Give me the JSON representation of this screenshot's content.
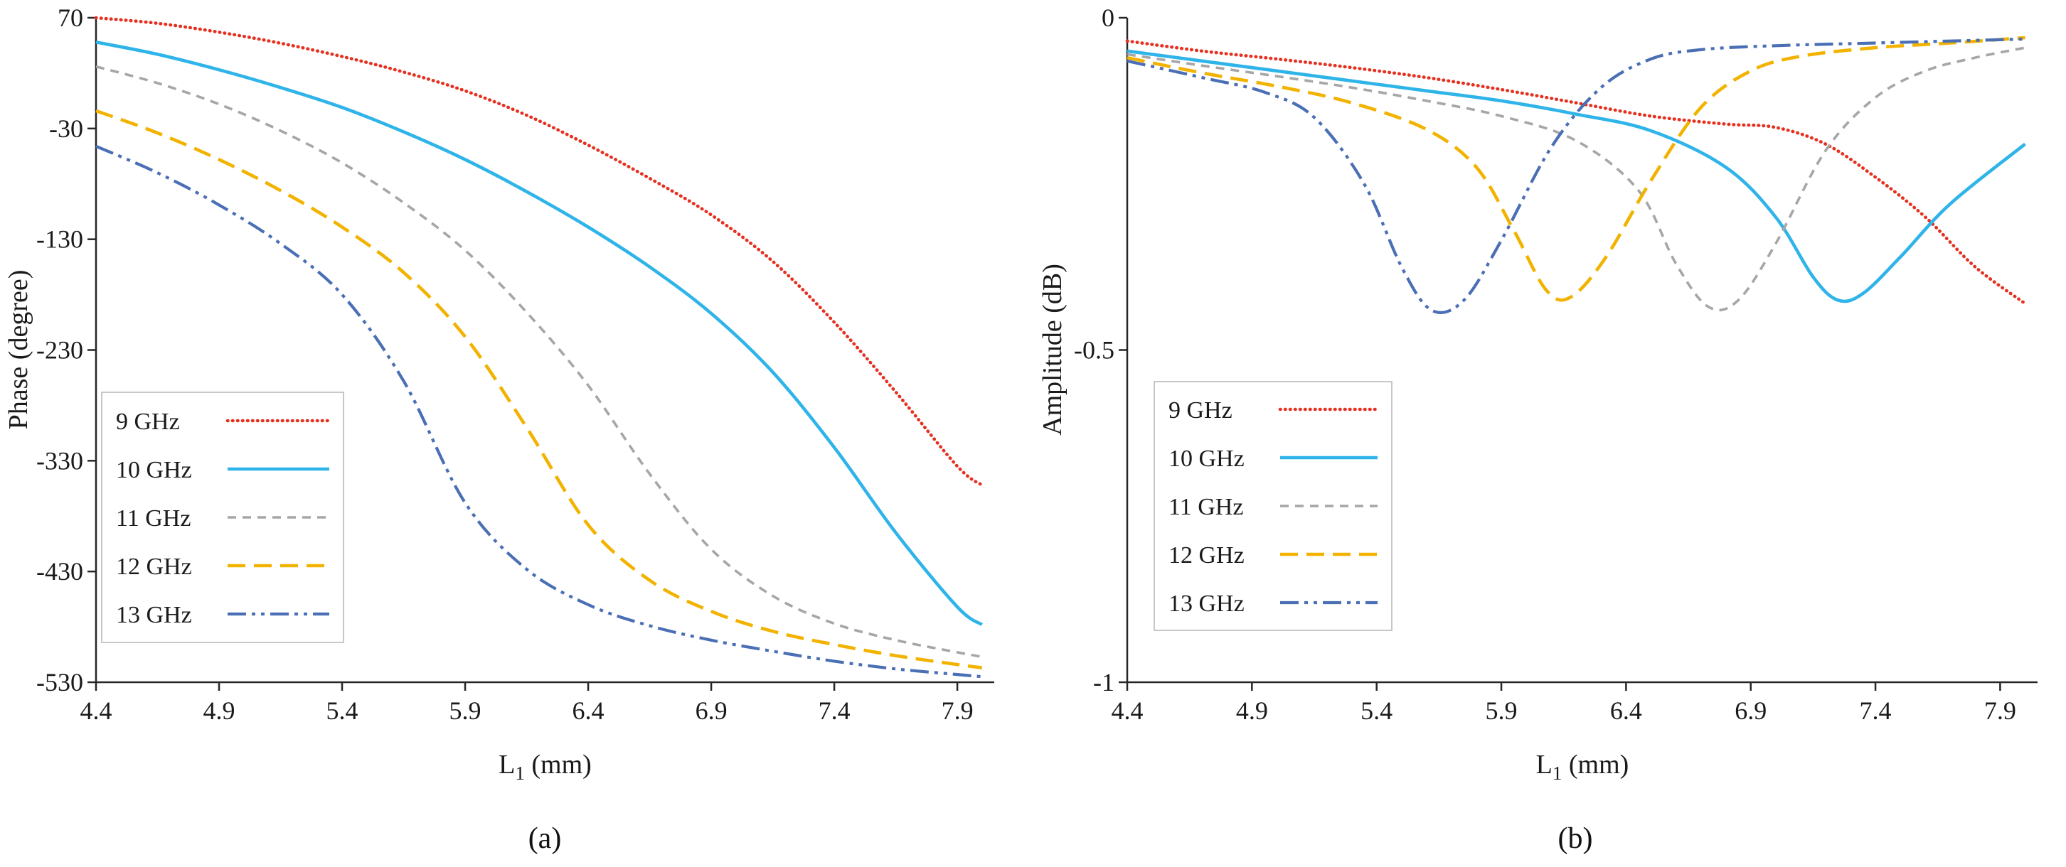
{
  "page": {
    "background": "#ffffff"
  },
  "captions": {
    "a": "(a)",
    "b": "(b)"
  },
  "chart_data": [
    {
      "type": "line",
      "title": "",
      "caption": "(a)",
      "xlabel": "L1 (mm)",
      "xlabel_rich": [
        {
          "t": "L"
        },
        {
          "t": "1",
          "sub": true
        },
        {
          "t": " (mm)"
        }
      ],
      "ylabel": "Phase (degree)",
      "xlim": [
        4.4,
        8.05
      ],
      "ylim": [
        -530,
        70
      ],
      "xticks": [
        4.4,
        4.9,
        5.4,
        5.9,
        6.4,
        6.9,
        7.4,
        7.9
      ],
      "xtick_labels": [
        "4.4",
        "4.9",
        "5.4",
        "5.9",
        "6.4",
        "6.9",
        "7.4",
        "7.9"
      ],
      "yticks": [
        70,
        -30,
        -130,
        -230,
        -330,
        -430,
        -530
      ],
      "ytick_labels": [
        "70",
        "-30",
        "-130",
        "-230",
        "-330",
        "-430",
        "-530"
      ],
      "grid": false,
      "legend_position": "lower-left",
      "series": [
        {
          "name": "9 GHz",
          "color": "#e6301f",
          "style": "dotted",
          "points": [
            [
              4.4,
              70
            ],
            [
              4.65,
              65
            ],
            [
              4.9,
              57
            ],
            [
              5.15,
              47
            ],
            [
              5.4,
              35
            ],
            [
              5.65,
              21
            ],
            [
              5.9,
              4
            ],
            [
              6.15,
              -18
            ],
            [
              6.4,
              -45
            ],
            [
              6.65,
              -75
            ],
            [
              6.9,
              -108
            ],
            [
              7.15,
              -150
            ],
            [
              7.4,
              -205
            ],
            [
              7.65,
              -268
            ],
            [
              7.9,
              -335
            ],
            [
              8.0,
              -352
            ]
          ]
        },
        {
          "name": "10 GHz",
          "color": "#2fb4e9",
          "style": "solid",
          "points": [
            [
              4.4,
              48
            ],
            [
              4.65,
              37
            ],
            [
              4.9,
              23
            ],
            [
              5.15,
              7
            ],
            [
              5.4,
              -11
            ],
            [
              5.65,
              -33
            ],
            [
              5.9,
              -58
            ],
            [
              6.15,
              -87
            ],
            [
              6.4,
              -119
            ],
            [
              6.65,
              -155
            ],
            [
              6.9,
              -197
            ],
            [
              7.15,
              -250
            ],
            [
              7.4,
              -318
            ],
            [
              7.65,
              -395
            ],
            [
              7.9,
              -462
            ],
            [
              8.0,
              -478
            ]
          ]
        },
        {
          "name": "11 GHz",
          "color": "#a6a6a6",
          "style": "dash",
          "points": [
            [
              4.4,
              26
            ],
            [
              4.65,
              11
            ],
            [
              4.9,
              -8
            ],
            [
              5.15,
              -32
            ],
            [
              5.4,
              -61
            ],
            [
              5.65,
              -97
            ],
            [
              5.9,
              -140
            ],
            [
              6.15,
              -196
            ],
            [
              6.4,
              -262
            ],
            [
              6.65,
              -342
            ],
            [
              6.9,
              -410
            ],
            [
              7.15,
              -452
            ],
            [
              7.4,
              -477
            ],
            [
              7.65,
              -492
            ],
            [
              7.9,
              -503
            ],
            [
              8.0,
              -507
            ]
          ]
        },
        {
          "name": "12 GHz",
          "color": "#f2b300",
          "style": "longdash",
          "points": [
            [
              4.4,
              -14
            ],
            [
              4.65,
              -34
            ],
            [
              4.9,
              -58
            ],
            [
              5.15,
              -86
            ],
            [
              5.4,
              -119
            ],
            [
              5.65,
              -160
            ],
            [
              5.9,
              -218
            ],
            [
              6.15,
              -300
            ],
            [
              6.4,
              -388
            ],
            [
              6.65,
              -438
            ],
            [
              6.9,
              -466
            ],
            [
              7.15,
              -484
            ],
            [
              7.4,
              -496
            ],
            [
              7.65,
              -506
            ],
            [
              7.9,
              -514
            ],
            [
              8.0,
              -517
            ]
          ]
        },
        {
          "name": "13 GHz",
          "color": "#4a6fb5",
          "style": "dashdotdot",
          "points": [
            [
              4.4,
              -46
            ],
            [
              4.65,
              -70
            ],
            [
              4.9,
              -99
            ],
            [
              5.15,
              -134
            ],
            [
              5.4,
              -180
            ],
            [
              5.65,
              -258
            ],
            [
              5.9,
              -368
            ],
            [
              6.15,
              -428
            ],
            [
              6.4,
              -460
            ],
            [
              6.65,
              -479
            ],
            [
              6.9,
              -492
            ],
            [
              7.15,
              -502
            ],
            [
              7.4,
              -511
            ],
            [
              7.65,
              -518
            ],
            [
              7.9,
              -523
            ],
            [
              8.0,
              -525
            ]
          ]
        }
      ]
    },
    {
      "type": "line",
      "title": "",
      "caption": "(b)",
      "xlabel": "L1 (mm)",
      "xlabel_rich": [
        {
          "t": "L"
        },
        {
          "t": "1",
          "sub": true
        },
        {
          "t": " (mm)"
        }
      ],
      "ylabel": "Amplitude (dB)",
      "xlim": [
        4.4,
        8.05
      ],
      "ylim": [
        -1,
        0
      ],
      "xticks": [
        4.4,
        4.9,
        5.4,
        5.9,
        6.4,
        6.9,
        7.4,
        7.9
      ],
      "xtick_labels": [
        "4.4",
        "4.9",
        "5.4",
        "5.9",
        "6.4",
        "6.9",
        "7.4",
        "7.9"
      ],
      "yticks": [
        0,
        -0.5,
        -1
      ],
      "ytick_labels": [
        "0",
        "-0.5",
        "-1"
      ],
      "grid": false,
      "legend_position": "lower-left",
      "series": [
        {
          "name": "9 GHz",
          "color": "#e6301f",
          "style": "dotted",
          "points": [
            [
              4.4,
              -0.035
            ],
            [
              4.7,
              -0.05
            ],
            [
              5.0,
              -0.062
            ],
            [
              5.3,
              -0.075
            ],
            [
              5.6,
              -0.09
            ],
            [
              5.9,
              -0.108
            ],
            [
              6.2,
              -0.128
            ],
            [
              6.5,
              -0.148
            ],
            [
              6.8,
              -0.16
            ],
            [
              7.0,
              -0.165
            ],
            [
              7.2,
              -0.19
            ],
            [
              7.4,
              -0.24
            ],
            [
              7.6,
              -0.3
            ],
            [
              7.8,
              -0.375
            ],
            [
              8.0,
              -0.43
            ]
          ]
        },
        {
          "name": "10 GHz",
          "color": "#2fb4e9",
          "style": "solid",
          "points": [
            [
              4.4,
              -0.05
            ],
            [
              4.7,
              -0.065
            ],
            [
              5.0,
              -0.08
            ],
            [
              5.3,
              -0.095
            ],
            [
              5.6,
              -0.11
            ],
            [
              5.9,
              -0.125
            ],
            [
              6.2,
              -0.145
            ],
            [
              6.5,
              -0.17
            ],
            [
              6.8,
              -0.225
            ],
            [
              7.0,
              -0.3
            ],
            [
              7.15,
              -0.39
            ],
            [
              7.25,
              -0.425
            ],
            [
              7.35,
              -0.415
            ],
            [
              7.5,
              -0.36
            ],
            [
              7.7,
              -0.28
            ],
            [
              8.0,
              -0.19
            ]
          ]
        },
        {
          "name": "11 GHz",
          "color": "#a6a6a6",
          "style": "dash",
          "points": [
            [
              4.4,
              -0.055
            ],
            [
              4.7,
              -0.072
            ],
            [
              5.0,
              -0.088
            ],
            [
              5.3,
              -0.105
            ],
            [
              5.6,
              -0.125
            ],
            [
              5.9,
              -0.148
            ],
            [
              6.2,
              -0.185
            ],
            [
              6.45,
              -0.26
            ],
            [
              6.6,
              -0.37
            ],
            [
              6.73,
              -0.435
            ],
            [
              6.85,
              -0.425
            ],
            [
              7.0,
              -0.34
            ],
            [
              7.2,
              -0.2
            ],
            [
              7.4,
              -0.12
            ],
            [
              7.6,
              -0.08
            ],
            [
              7.8,
              -0.06
            ],
            [
              8.0,
              -0.045
            ]
          ]
        },
        {
          "name": "12 GHz",
          "color": "#f2b300",
          "style": "longdash",
          "points": [
            [
              4.4,
              -0.06
            ],
            [
              4.7,
              -0.083
            ],
            [
              5.0,
              -0.103
            ],
            [
              5.3,
              -0.128
            ],
            [
              5.6,
              -0.168
            ],
            [
              5.8,
              -0.225
            ],
            [
              5.95,
              -0.32
            ],
            [
              6.08,
              -0.41
            ],
            [
              6.18,
              -0.42
            ],
            [
              6.32,
              -0.36
            ],
            [
              6.5,
              -0.245
            ],
            [
              6.7,
              -0.135
            ],
            [
              6.9,
              -0.08
            ],
            [
              7.1,
              -0.058
            ],
            [
              7.4,
              -0.045
            ],
            [
              7.7,
              -0.038
            ],
            [
              8.0,
              -0.03
            ]
          ]
        },
        {
          "name": "13 GHz",
          "color": "#4a6fb5",
          "style": "dashdotdot",
          "points": [
            [
              4.4,
              -0.065
            ],
            [
              4.7,
              -0.09
            ],
            [
              4.95,
              -0.112
            ],
            [
              5.15,
              -0.15
            ],
            [
              5.35,
              -0.25
            ],
            [
              5.5,
              -0.375
            ],
            [
              5.62,
              -0.44
            ],
            [
              5.75,
              -0.425
            ],
            [
              5.9,
              -0.335
            ],
            [
              6.1,
              -0.195
            ],
            [
              6.3,
              -0.105
            ],
            [
              6.5,
              -0.062
            ],
            [
              6.7,
              -0.048
            ],
            [
              7.0,
              -0.042
            ],
            [
              7.4,
              -0.038
            ],
            [
              8.0,
              -0.032
            ]
          ]
        }
      ]
    }
  ]
}
